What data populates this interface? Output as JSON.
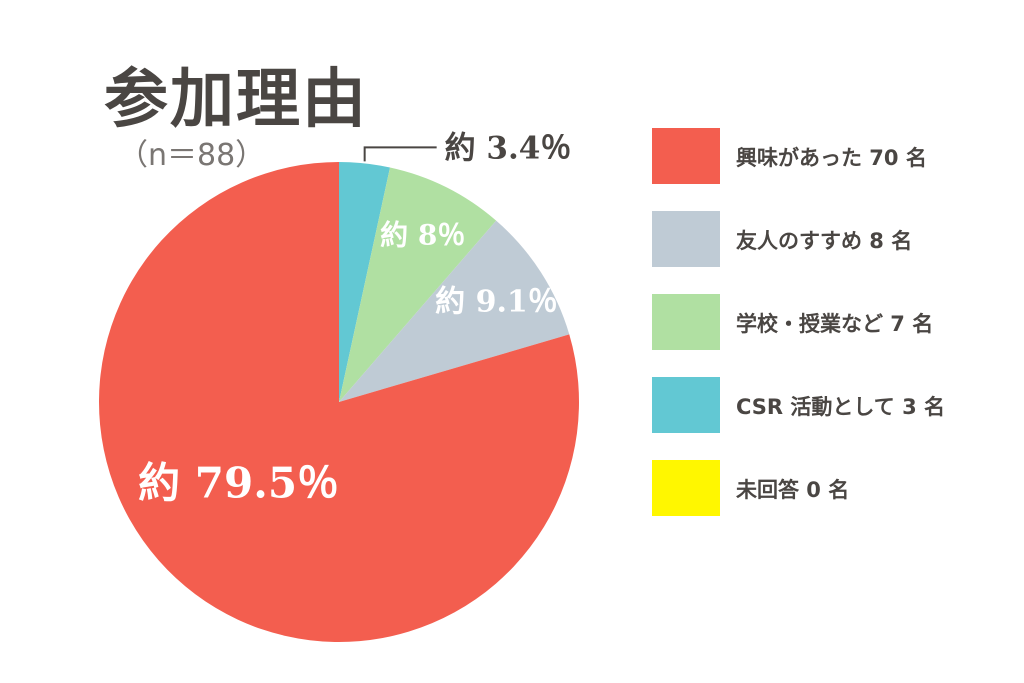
{
  "chart_data": {
    "type": "pie",
    "title": "参加理由",
    "subtitle": "（n＝88）",
    "slices": [
      {
        "name": "CSR活動として",
        "value": 3,
        "label": "約 3.4％",
        "color": "#62c8d3"
      },
      {
        "name": "学校・授業など",
        "value": 7,
        "label": "約 8％",
        "color": "#b0e0a2"
      },
      {
        "name": "友人のすすめ",
        "value": 8,
        "label": "約 9.1％",
        "color": "#bfcbd5"
      },
      {
        "name": "興味があった",
        "value": 70,
        "label": "約 79.5％",
        "color": "#f35e4f"
      },
      {
        "name": "未回答",
        "value": 0,
        "label": "",
        "color": "#fff700"
      }
    ],
    "legend": [
      {
        "label": "興味があった 70 名",
        "color": "#f35e4f"
      },
      {
        "label": "友人のすすめ 8 名",
        "color": "#bfcbd5"
      },
      {
        "label": "学校・授業など 7 名",
        "color": "#b0e0a2"
      },
      {
        "label": "CSR 活動として 3 名",
        "color": "#62c8d3"
      },
      {
        "label": "未回答 0 名",
        "color": "#fff700"
      }
    ],
    "legend_position": "right"
  }
}
